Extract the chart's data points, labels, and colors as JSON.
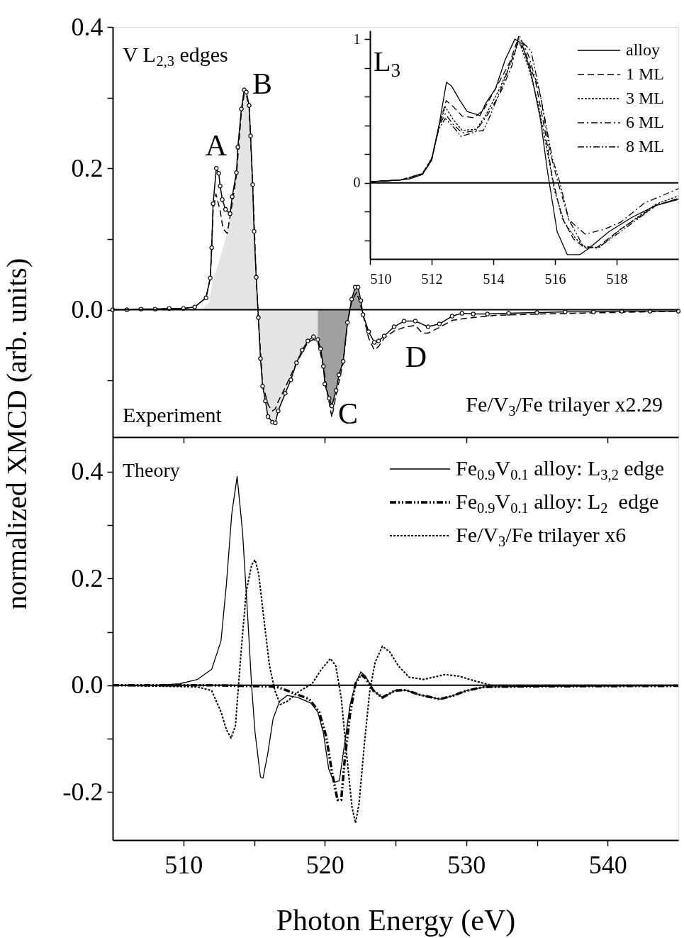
{
  "chart_data": [
    {
      "type": "line",
      "ylabel": "normalized XMCD (arb. units)",
      "xlim": [
        505,
        545
      ],
      "ylim": [
        -0.18,
        0.4
      ],
      "xticks": [
        {
          "value": 510,
          "label": null
        },
        {
          "value": 520,
          "label": null
        },
        {
          "value": 530,
          "label": null
        },
        {
          "value": 540,
          "label": null
        }
      ],
      "yticks": [
        {
          "value": -0.1,
          "label": null
        },
        {
          "value": 0,
          "label": "0.0"
        },
        {
          "value": 0.1,
          "label": null
        },
        {
          "value": 0.2,
          "label": "0.2"
        },
        {
          "value": 0.3,
          "label": null
        },
        {
          "value": 0.4,
          "label": "0.4"
        }
      ],
      "tick_labels": "y",
      "ref_lines": [
        {
          "axis": "y",
          "value": 0,
          "color": "#000000"
        }
      ],
      "annotations": [
        "V L$_{2,3}$ edges",
        "Experiment",
        "Fe/V$_{3}$/Fe trilayer x2.29",
        "A",
        "B",
        "C",
        "D"
      ],
      "series": [
        {
          "type": "area",
          "color": "#e4e4e4",
          "x": [
            511.3,
            511.8,
            512.1,
            512.4,
            512.7,
            513.1,
            513.45,
            513.75,
            514.1,
            514.3,
            514.45,
            514.65,
            514.9,
            515.0,
            515.15,
            515.3,
            515.45,
            515.6,
            515.8,
            515.98,
            516.3,
            516.5,
            516.7,
            517.2,
            517.6,
            518.0,
            518.4,
            518.8,
            519.2,
            519.5
          ],
          "values": [
            0,
            0.01,
            0.043,
            0.06,
            0.08,
            0.11,
            0.16,
            0.194,
            0.284,
            0.311,
            0.308,
            0.289,
            0.177,
            0.111,
            0.046,
            -0.011,
            -0.069,
            -0.108,
            -0.129,
            -0.151,
            -0.159,
            -0.16,
            -0.143,
            -0.118,
            -0.099,
            -0.075,
            -0.057,
            -0.044,
            -0.038,
            -0.042
          ]
        },
        {
          "type": "area",
          "color": "#a0a0a0",
          "x": [
            519.5,
            519.7,
            519.9,
            520.0,
            520.3,
            520.5,
            520.8,
            521.0,
            521.3,
            521.6,
            521.9,
            522.15,
            522.35,
            522.55,
            522.7
          ],
          "values": [
            -0.042,
            -0.055,
            -0.08,
            -0.105,
            -0.125,
            -0.136,
            -0.114,
            -0.092,
            -0.073,
            -0.018,
            0.015,
            0.032,
            0.032,
            0.013,
            -0.007
          ]
        },
        {
          "color": "#000000",
          "line_style": "dashed",
          "marker": "none",
          "x": [
            505,
            508,
            510,
            510.8,
            511.6,
            511.9,
            512.0,
            512.1,
            512.3,
            512.6,
            512.8,
            513.1,
            513.45,
            513.75,
            514.1,
            514.3,
            514.45,
            514.65,
            514.9,
            515.15,
            515.3,
            515.6,
            516.0,
            516.3,
            516.5,
            516.7,
            517.2,
            518.0,
            518.8,
            519.2,
            519.5,
            519.9,
            520.2,
            520.5,
            520.8,
            521.3,
            521.6,
            521.9,
            522.25,
            522.55,
            522.8,
            523.1,
            523.5,
            523.8,
            524.2,
            524.9,
            525.6,
            526.4,
            526.9,
            527.3,
            528.1,
            529,
            530,
            532,
            535,
            540,
            545
          ],
          "values": [
            0,
            0.001,
            0.002,
            0.004,
            0.017,
            0.045,
            0.088,
            0.14,
            0.164,
            0.14,
            0.115,
            0.108,
            0.15,
            0.19,
            0.28,
            0.305,
            0.305,
            0.285,
            0.177,
            0.046,
            -0.011,
            -0.105,
            -0.135,
            -0.143,
            -0.14,
            -0.13,
            -0.11,
            -0.075,
            -0.046,
            -0.042,
            -0.045,
            -0.08,
            -0.12,
            -0.152,
            -0.12,
            -0.075,
            -0.02,
            0.012,
            0.025,
            0.005,
            -0.015,
            -0.04,
            -0.057,
            -0.052,
            -0.04,
            -0.03,
            -0.025,
            -0.022,
            -0.033,
            -0.033,
            -0.025,
            -0.015,
            -0.012,
            -0.008,
            -0.006,
            -0.004,
            -0.002
          ]
        },
        {
          "color": "#000000",
          "line_style": "solid",
          "marker": "circle",
          "x": [
            505,
            506,
            507,
            508,
            509,
            510,
            510.8,
            511.6,
            511.9,
            512.0,
            512.1,
            512.33,
            512.5,
            512.6,
            512.75,
            512.98,
            513.3,
            513.45,
            513.75,
            513.85,
            514.1,
            514.3,
            514.45,
            514.65,
            514.75,
            514.9,
            515.0,
            515.15,
            515.3,
            515.45,
            515.6,
            515.8,
            515.98,
            516.3,
            516.5,
            516.7,
            517.2,
            517.6,
            518.0,
            518.4,
            518.8,
            519.2,
            519.5,
            519.7,
            519.9,
            520.0,
            520.3,
            520.5,
            520.8,
            521.0,
            521.3,
            521.6,
            521.9,
            522.15,
            522.35,
            522.55,
            522.7,
            523.1,
            523.5,
            523.8,
            524.2,
            524.9,
            525.6,
            526.4,
            527.3,
            528.1,
            529.0,
            529.7,
            530.5,
            531.5,
            533,
            535,
            537,
            539,
            541,
            543,
            545
          ],
          "values": [
            0,
            0,
            0.001,
            0.001,
            0.002,
            0.002,
            0.004,
            0.017,
            0.045,
            0.088,
            0.15,
            0.2,
            0.193,
            0.175,
            0.156,
            0.142,
            0.136,
            0.16,
            0.194,
            0.23,
            0.284,
            0.311,
            0.308,
            0.289,
            0.246,
            0.177,
            0.111,
            0.046,
            -0.011,
            -0.069,
            -0.108,
            -0.129,
            -0.151,
            -0.159,
            -0.16,
            -0.143,
            -0.118,
            -0.099,
            -0.075,
            -0.057,
            -0.044,
            -0.038,
            -0.042,
            -0.055,
            -0.08,
            -0.105,
            -0.125,
            -0.136,
            -0.114,
            -0.092,
            -0.073,
            -0.018,
            0.015,
            0.032,
            0.032,
            0.013,
            -0.007,
            -0.031,
            -0.046,
            -0.044,
            -0.037,
            -0.024,
            -0.016,
            -0.016,
            -0.024,
            -0.02,
            -0.009,
            -0.005,
            -0.006,
            -0.006,
            -0.005,
            -0.004,
            -0.003,
            -0.003,
            -0.002,
            -0.002,
            -0.002
          ]
        }
      ]
    },
    {
      "type": "line",
      "xlim": [
        510,
        520
      ],
      "ylim": [
        -0.53,
        1.06
      ],
      "xticks": [
        510,
        512,
        514,
        516,
        518
      ],
      "yticks": [
        {
          "value": -0.4,
          "label": null
        },
        {
          "value": -0.2,
          "label": null
        },
        0,
        {
          "value": 0.2,
          "label": null
        },
        {
          "value": 0.4,
          "label": null
        },
        {
          "value": 0.6,
          "label": null
        },
        {
          "value": 0.8,
          "label": null
        },
        1
      ],
      "legend": "top right",
      "ref_lines": [
        {
          "axis": "y",
          "value": 0,
          "color": "#000000"
        }
      ],
      "annotations": [
        "L$_{3}$"
      ],
      "series": [
        {
          "name": "alloy",
          "color": "#000000",
          "line_style": "solid",
          "x": [
            510,
            510.85,
            511.3,
            511.7,
            512.0,
            512.23,
            512.48,
            512.65,
            512.92,
            513.15,
            513.57,
            513.76,
            514.07,
            514.38,
            514.7,
            514.92,
            515.22,
            515.53,
            515.76,
            516.07,
            516.4,
            516.8,
            517.1,
            517.75,
            518.5,
            519.27,
            520
          ],
          "values": [
            0.008,
            0.017,
            0.028,
            0.058,
            0.158,
            0.39,
            0.7,
            0.672,
            0.572,
            0.497,
            0.468,
            0.556,
            0.655,
            0.854,
            1.0,
            0.97,
            0.771,
            0.439,
            0.075,
            -0.34,
            -0.5,
            -0.5,
            -0.456,
            -0.34,
            -0.24,
            -0.158,
            -0.116
          ]
        },
        {
          "name": "1 ML",
          "color": "#000000",
          "line_style": "dashed",
          "x": [
            510,
            511,
            511.7,
            512.0,
            512.23,
            512.47,
            512.7,
            512.99,
            513.37,
            513.68,
            514.07,
            514.53,
            514.76,
            514.99,
            515.37,
            515.68,
            515.91,
            516.22,
            516.6,
            516.98,
            517.37,
            518.13,
            519.27,
            520
          ],
          "values": [
            0.008,
            0.02,
            0.058,
            0.158,
            0.39,
            0.572,
            0.53,
            0.464,
            0.453,
            0.506,
            0.655,
            0.837,
            0.978,
            0.937,
            0.705,
            0.357,
            0.041,
            -0.24,
            -0.39,
            -0.456,
            -0.448,
            -0.323,
            -0.158,
            -0.108
          ]
        },
        {
          "name": "3 ML",
          "color": "#000000",
          "line_style": "dotted",
          "x": [
            510,
            511,
            511.7,
            512.0,
            512.23,
            512.44,
            512.7,
            512.99,
            513.45,
            513.76,
            514.22,
            514.6,
            514.83,
            515.14,
            515.45,
            515.76,
            515.99,
            516.3,
            516.68,
            516.98,
            517.44,
            518.13,
            519.27,
            520
          ],
          "values": [
            0.008,
            0.02,
            0.058,
            0.158,
            0.39,
            0.53,
            0.44,
            0.365,
            0.373,
            0.473,
            0.663,
            0.854,
            0.987,
            0.804,
            0.556,
            0.207,
            -0.058,
            -0.274,
            -0.39,
            -0.448,
            -0.448,
            -0.323,
            -0.149,
            -0.091
          ]
        },
        {
          "name": "6 ML",
          "color": "#000000",
          "line_style": "dashdot",
          "x": [
            510,
            511,
            511.7,
            512.0,
            512.23,
            512.44,
            512.7,
            512.99,
            513.45,
            513.76,
            514.22,
            514.6,
            514.83,
            515.14,
            515.53,
            515.83,
            516.07,
            516.45,
            516.98,
            517.6,
            518.13,
            518.9,
            520
          ],
          "values": [
            0.008,
            0.02,
            0.065,
            0.17,
            0.39,
            0.48,
            0.406,
            0.348,
            0.365,
            0.456,
            0.622,
            0.813,
            1.03,
            0.887,
            0.605,
            0.224,
            0.025,
            -0.257,
            -0.357,
            -0.323,
            -0.274,
            -0.141,
            -0.041
          ]
        },
        {
          "name": "8 ML",
          "color": "#000000",
          "line_style": "dashdotdot",
          "x": [
            510,
            511,
            511.7,
            512.0,
            512.23,
            512.44,
            512.7,
            512.95,
            513.45,
            513.68,
            513.91,
            514.37,
            514.68,
            514.83,
            515.22,
            515.37,
            515.68,
            515.91,
            516.15,
            516.45,
            516.91,
            517.37,
            518.13,
            519.27,
            520
          ],
          "values": [
            0.008,
            0.02,
            0.065,
            0.17,
            0.37,
            0.448,
            0.39,
            0.323,
            0.357,
            0.365,
            0.473,
            0.721,
            0.904,
            1.003,
            0.92,
            0.771,
            0.439,
            0.174,
            0.008,
            -0.257,
            -0.44,
            -0.456,
            -0.34,
            -0.158,
            -0.108
          ]
        }
      ]
    },
    {
      "type": "line",
      "xlabel": "Photon Energy (eV)",
      "xlim": [
        505,
        545
      ],
      "ylim": [
        -0.29,
        0.465
      ],
      "xticks": [
        510,
        {
          "value": 515,
          "label": null
        },
        520,
        {
          "value": 525,
          "label": null
        },
        530,
        {
          "value": 535,
          "label": null
        },
        540
      ],
      "yticks": [
        {
          "value": -0.2,
          "label": "-0.2"
        },
        {
          "value": -0.1,
          "label": null
        },
        {
          "value": 0,
          "label": "0.0"
        },
        {
          "value": 0.1,
          "label": null
        },
        {
          "value": 0.2,
          "label": "0.2"
        },
        {
          "value": 0.3,
          "label": null
        },
        {
          "value": 0.4,
          "label": "0.4"
        }
      ],
      "legend": "top right",
      "ref_lines": [
        {
          "axis": "y",
          "value": 0,
          "color": "#000000"
        }
      ],
      "annotations": [
        "Theory"
      ],
      "series": [
        {
          "name": "Fe$_{0.9}$V$_{0.1}$ alloy: L$_{3,2}$ edge",
          "color": "#000000",
          "line_style": "solid",
          "x": [
            505,
            508,
            509.75,
            511,
            512,
            512.66,
            513.04,
            513.42,
            513.8,
            514.18,
            514.56,
            514.82,
            515.07,
            515.45,
            515.63,
            515.96,
            516.34,
            516.8,
            517.35,
            518.1,
            519,
            519.5,
            519.9,
            520.27,
            520.65,
            521.03,
            521.4,
            521.79,
            522.17,
            522.55,
            522.88,
            523.44,
            524.07,
            524.96,
            525.72,
            526.73,
            528.13,
            529,
            530.03,
            531.3,
            535.1,
            545
          ],
          "values": [
            0,
            0,
            0.003,
            0.011,
            0.03,
            0.083,
            0.189,
            0.321,
            0.391,
            0.288,
            0.123,
            0,
            -0.089,
            -0.172,
            -0.174,
            -0.129,
            -0.063,
            -0.03,
            -0.019,
            -0.023,
            -0.033,
            -0.05,
            -0.089,
            -0.156,
            -0.182,
            -0.179,
            -0.109,
            -0.036,
            0.003,
            0.025,
            0.017,
            -0.01,
            -0.023,
            -0.01,
            -0.009,
            -0.018,
            -0.026,
            -0.02,
            -0.01,
            -0.003,
            -0.002,
            -0.001
          ]
        },
        {
          "name": "Fe$_{0.9}$V$_{0.1}$ alloy: L$_{2}$  edge",
          "color": "#000000",
          "line_style": "dashdotdot",
          "x": [
            505,
            512,
            514,
            516,
            516.6,
            517.35,
            518.9,
            519.6,
            520.1,
            520.5,
            520.9,
            521.16,
            521.4,
            521.8,
            522.17,
            522.55,
            522.9,
            523.44,
            524.07,
            524.96,
            525.72,
            526.73,
            528.13,
            529,
            530.03,
            531.3,
            535,
            545
          ],
          "values": [
            0,
            0,
            -0.001,
            -0.002,
            -0.003,
            -0.01,
            -0.026,
            -0.05,
            -0.096,
            -0.162,
            -0.215,
            -0.215,
            -0.142,
            -0.05,
            0.003,
            0.02,
            0.013,
            -0.01,
            -0.023,
            -0.01,
            -0.009,
            -0.018,
            -0.026,
            -0.02,
            -0.01,
            -0.003,
            -0.002,
            -0.001
          ]
        },
        {
          "name": "Fe/V$_{3}$/Fe trilayer x6",
          "color": "#000000",
          "line_style": "dotted",
          "x": [
            505,
            511,
            512,
            512.66,
            513.04,
            513.37,
            513.68,
            514.06,
            514.44,
            514.82,
            515.07,
            515.32,
            515.7,
            516.09,
            516.47,
            516.85,
            517.35,
            518.1,
            519.1,
            519.76,
            520.4,
            520.78,
            521.16,
            521.54,
            521.92,
            522.17,
            522.42,
            522.8,
            523.18,
            523.56,
            524.07,
            524.58,
            525.21,
            525.97,
            526.99,
            528.5,
            529.5,
            530.5,
            531.8,
            545
          ],
          "values": [
            0,
            -0.003,
            -0.01,
            -0.05,
            -0.083,
            -0.099,
            -0.076,
            0.056,
            0.175,
            0.225,
            0.235,
            0.209,
            0.123,
            0.036,
            -0.01,
            -0.036,
            -0.03,
            -0.013,
            0.003,
            0.03,
            0.05,
            0.036,
            -0.023,
            -0.129,
            -0.228,
            -0.258,
            -0.222,
            -0.109,
            -0.01,
            0.043,
            0.073,
            0.063,
            0.036,
            0.015,
            0.011,
            0.02,
            0.017,
            0.009,
            0,
            0
          ]
        }
      ]
    }
  ]
}
